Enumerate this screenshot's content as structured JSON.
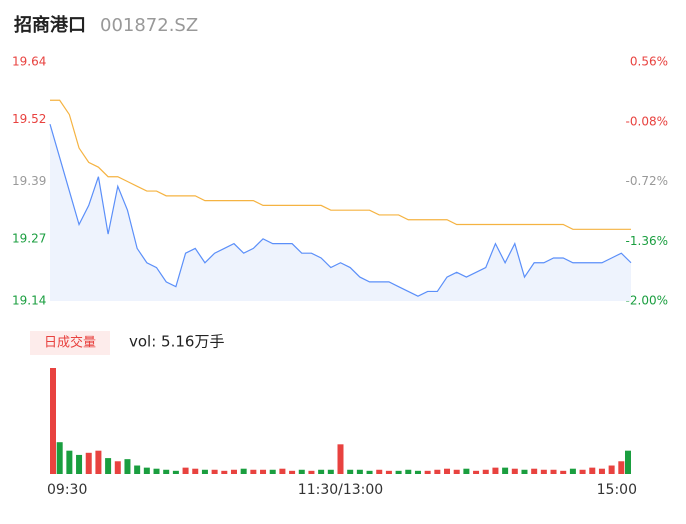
{
  "header": {
    "title": "招商港口",
    "code": "001872.SZ"
  },
  "chart_data": [
    {
      "type": "line",
      "series": [
        {
          "name": "price",
          "color": "#5b8ff9",
          "values": [
            19.51,
            19.44,
            19.37,
            19.3,
            19.34,
            19.4,
            19.28,
            19.38,
            19.33,
            19.25,
            19.22,
            19.21,
            19.18,
            19.17,
            19.24,
            19.25,
            19.22,
            19.24,
            19.25,
            19.26,
            19.24,
            19.25,
            19.27,
            19.26,
            19.26,
            19.26,
            19.24,
            19.24,
            19.23,
            19.21,
            19.22,
            19.21,
            19.19,
            19.18,
            19.18,
            19.18,
            19.17,
            19.16,
            19.15,
            19.16,
            19.16,
            19.19,
            19.2,
            19.19,
            19.2,
            19.21,
            19.26,
            19.22,
            19.26,
            19.19,
            19.22,
            19.22,
            19.23,
            19.23,
            19.22,
            19.22,
            19.22,
            19.22,
            19.23,
            19.24,
            19.22
          ]
        },
        {
          "name": "average",
          "color": "#f5b342",
          "values": [
            19.56,
            19.56,
            19.53,
            19.46,
            19.43,
            19.42,
            19.4,
            19.4,
            19.39,
            19.38,
            19.37,
            19.37,
            19.36,
            19.36,
            19.36,
            19.36,
            19.35,
            19.35,
            19.35,
            19.35,
            19.35,
            19.35,
            19.34,
            19.34,
            19.34,
            19.34,
            19.34,
            19.34,
            19.34,
            19.33,
            19.33,
            19.33,
            19.33,
            19.33,
            19.32,
            19.32,
            19.32,
            19.31,
            19.31,
            19.31,
            19.31,
            19.31,
            19.3,
            19.3,
            19.3,
            19.3,
            19.3,
            19.3,
            19.3,
            19.3,
            19.3,
            19.3,
            19.3,
            19.3,
            19.29,
            19.29,
            19.29,
            19.29,
            19.29,
            19.29,
            19.29
          ]
        }
      ],
      "xlim": [
        0,
        60
      ],
      "ylim": [
        19.14,
        19.64
      ],
      "yticks": [
        19.64,
        19.52,
        19.39,
        19.27,
        19.14
      ],
      "y2lim": [
        -2,
        0.56
      ],
      "y2ticks": [
        {
          "value": 0.56,
          "label": "0.56%"
        },
        {
          "value": -0.08,
          "label": "-0.08%"
        },
        {
          "value": -0.72,
          "label": "-0.72%"
        },
        {
          "value": -1.36,
          "label": "-1.36%"
        },
        {
          "value": -2,
          "label": "-2.00%"
        }
      ],
      "tick_colors": [
        "#e8423f",
        "#e8423f",
        "#999999",
        "#1a9e3f",
        "#1a9e3f"
      ],
      "area_color": "#eef3fd"
    },
    {
      "type": "bar",
      "button": "日成交量",
      "title": "vol: 5.16万手",
      "up_color": "#e8423f",
      "down_color": "#1a9e3f",
      "values": [
        100,
        30,
        22,
        18,
        20,
        22,
        15,
        12,
        14,
        8,
        6,
        5,
        4,
        3,
        6,
        5,
        4,
        4,
        3,
        4,
        5,
        4,
        4,
        4,
        5,
        3,
        4,
        3,
        4,
        4,
        28,
        4,
        4,
        3,
        4,
        3,
        3,
        4,
        3,
        3,
        4,
        5,
        4,
        5,
        3,
        4,
        6,
        6,
        5,
        4,
        5,
        4,
        4,
        3,
        5,
        4,
        6,
        5,
        8,
        12,
        22
      ],
      "xlim": [
        0,
        60
      ],
      "ylim": [
        0,
        100
      ],
      "xticks": [
        {
          "value": 0,
          "label": "09:30"
        },
        {
          "value": 30,
          "label": "11:30/13:00"
        },
        {
          "value": 60,
          "label": "15:00"
        }
      ]
    }
  ]
}
